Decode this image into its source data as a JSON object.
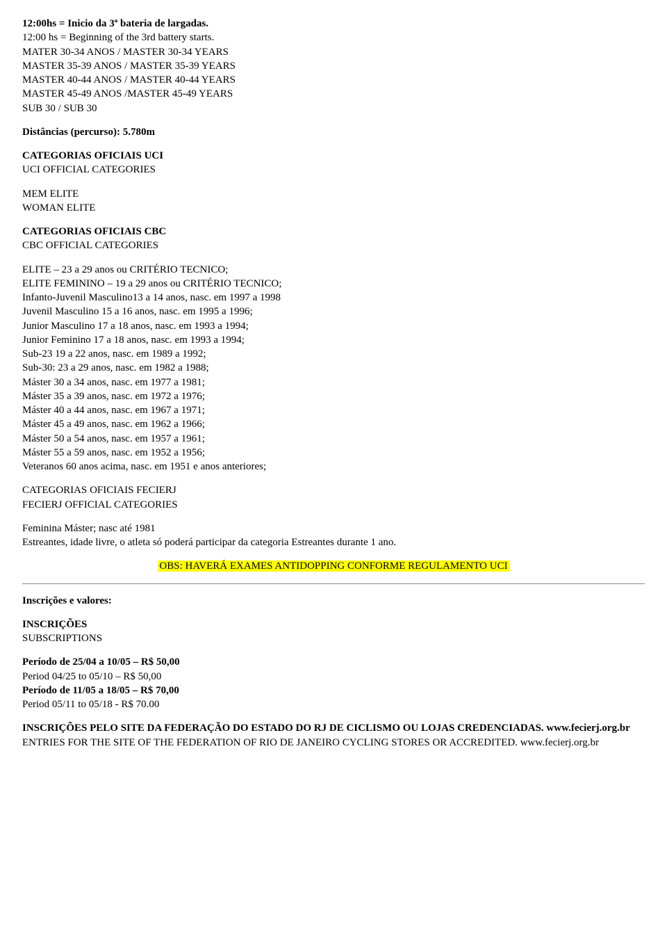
{
  "header": {
    "line1": "12:00hs = Inicio da 3ª bateria de largadas.",
    "line2": "12:00 hs = Beginning of the 3rd battery starts.",
    "line3": "MATER 30-34 ANOS / MASTER 30-34 YEARS",
    "line4": "MASTER 35-39 ANOS / MASTER 35-39 YEARS",
    "line5": "MASTER 40-44 ANOS / MASTER 40-44 YEARS",
    "line6": "MASTER 45-49 ANOS /MASTER 45-49 YEARS",
    "line7": "SUB 30 / SUB 30"
  },
  "distances": {
    "label": "Distâncias (percurso): 5.780m"
  },
  "uci": {
    "title_pt": "CATEGORIAS OFICIAIS UCI",
    "title_en": "UCI OFFICIAL CATEGORIES",
    "line1": "MEM ELITE",
    "line2": "WOMAN ELITE"
  },
  "cbc": {
    "title_pt": "CATEGORIAS OFICIAIS CBC",
    "title_en": "CBC OFFICIAL CATEGORIES",
    "lines": [
      "ELITE – 23 a 29 anos ou CRITÉRIO TECNICO;",
      "ELITE FEMININO – 19 a 29 anos ou CRITÉRIO TECNICO;",
      "Infanto-Juvenil Masculino13 a 14 anos, nasc. em 1997 a 1998",
      "Juvenil Masculino 15 a 16 anos, nasc. em 1995 a 1996;",
      "Junior Masculino 17 a 18 anos, nasc. em 1993 a 1994;",
      "Junior Feminino 17 a 18 anos, nasc. em 1993 a 1994;",
      "Sub-23 19 a 22 anos, nasc. em 1989 a 1992;",
      "Sub-30: 23 a 29 anos, nasc. em 1982 a 1988;",
      "Máster 30 a 34 anos, nasc. em 1977 a 1981;",
      "Máster 35 a 39 anos, nasc. em 1972 a 1976;",
      "Máster 40 a 44 anos, nasc. em 1967 a 1971;",
      "Máster 45 a 49 anos, nasc. em 1962 a 1966;",
      "Máster 50 a 54 anos, nasc. em 1957 a 1961;",
      "Máster 55 a 59 anos, nasc. em 1952 a 1956;",
      "Veteranos 60 anos acima, nasc. em 1951 e anos anteriores;"
    ]
  },
  "fecierj": {
    "title_pt": "CATEGORIAS OFICIAIS FECIERJ",
    "title_en": "FECIERJ OFFICIAL CATEGORIES",
    "line1": "Feminina Máster; nasc até 1981",
    "line2": "Estreantes, idade livre, o atleta só poderá participar da categoria Estreantes durante 1 ano."
  },
  "obs": {
    "text": "OBS: HAVERÁ EXAMES ANTIDOPPING CONFORME REGULAMENTO UCI"
  },
  "inscricoes": {
    "heading": "Inscrições e valores:",
    "title_pt": "INSCRIÇÕES",
    "title_en": "SUBSCRIPTIONS",
    "period1_pt": "Período de 25/04 a 10/05 – R$ 50,00",
    "period1_en": "Period 04/25 to 05/10 – R$ 50,00",
    "period2_pt": "Período de 11/05 a 18/05 – R$ 70,00",
    "period2_en": "Period 05/11 to 05/18 - R$ 70.00"
  },
  "entries": {
    "line1": "INSCRIÇÕES PELO SITE DA FEDERAÇÃO DO ESTADO DO RJ DE CICLISMO OU LOJAS CREDENCIADAS. www.fecierj.org.br",
    "line2": "ENTRIES FOR THE SITE OF THE FEDERATION OF RIO DE JANEIRO CYCLING STORES OR ACCREDITED. www.fecierj.org.br"
  }
}
